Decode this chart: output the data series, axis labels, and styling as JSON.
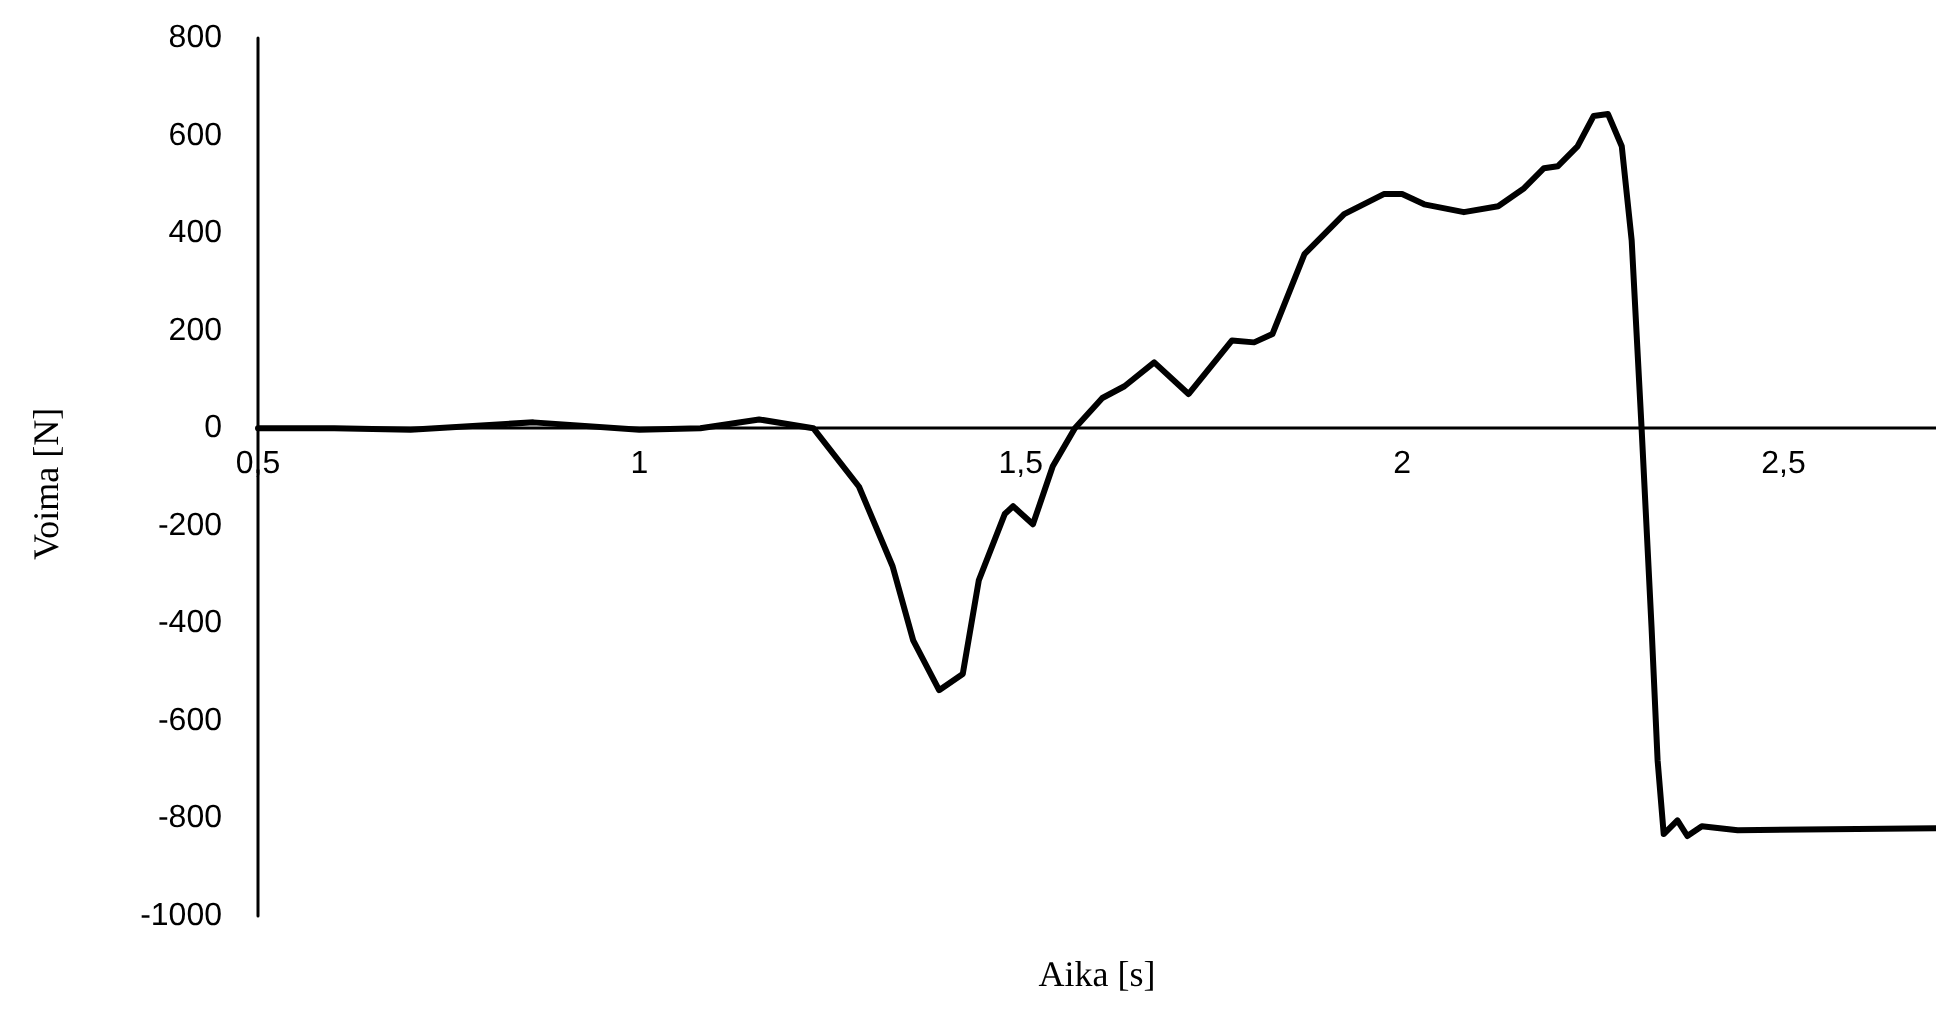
{
  "chart_data": {
    "type": "line",
    "xlabel": "Aika [s]",
    "ylabel": "Voima [N]",
    "xlim": [
      0.5,
      2.7
    ],
    "ylim": [
      -1000,
      800
    ],
    "xticks": [
      {
        "value": 0.5,
        "label": "0,5"
      },
      1,
      {
        "value": 1.5,
        "label": "1,5"
      },
      2,
      {
        "value": 2.5,
        "label": "2,5"
      }
    ],
    "yticks": [
      -1000,
      -800,
      -600,
      -400,
      -200,
      0,
      200,
      400,
      600,
      800
    ],
    "grid": false,
    "marker": "none",
    "line_style": "solid",
    "series": [
      {
        "color": "#000000",
        "x": [
          0.5,
          0.6,
          0.7,
          0.861,
          1.0,
          1.08,
          1.157,
          1.228,
          1.288,
          1.332,
          1.359,
          1.393,
          1.424,
          1.445,
          1.479,
          1.49,
          1.516,
          1.542,
          1.571,
          1.607,
          1.636,
          1.675,
          1.72,
          1.777,
          1.806,
          1.83,
          1.872,
          1.924,
          1.976,
          2.0,
          2.029,
          2.081,
          2.126,
          2.16,
          2.186,
          2.204,
          2.23,
          2.251,
          2.27,
          2.288,
          2.301,
          2.314,
          2.327,
          2.335,
          2.343,
          2.361,
          2.374,
          2.393,
          2.44,
          2.7
        ],
        "values": [
          0,
          0,
          -3,
          12,
          -3,
          0,
          18,
          0,
          -120,
          -283,
          -435,
          -537,
          -504,
          -312,
          -176,
          -160,
          -197,
          -78,
          0,
          62,
          86,
          135,
          70,
          180,
          176,
          193,
          357,
          439,
          480,
          480,
          459,
          443,
          455,
          492,
          533,
          537,
          578,
          640,
          644,
          578,
          385,
          0,
          -406,
          -681,
          -832,
          -804,
          -836,
          -816,
          -824,
          -820
        ]
      }
    ]
  }
}
